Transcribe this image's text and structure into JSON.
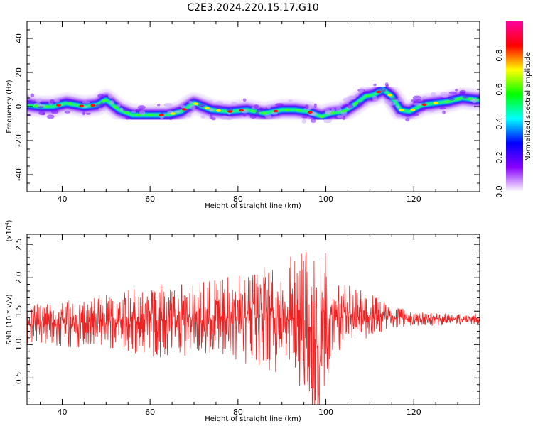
{
  "figure_title": "C2E3.2024.220.15.17.G10",
  "chart_data": [
    {
      "type": "heatmap",
      "xlabel": "Height of straight line (km)",
      "ylabel": "Frequency (Hz)",
      "xlim": [
        32,
        135
      ],
      "ylim": [
        -50,
        50
      ],
      "xticks": [
        40,
        60,
        80,
        100,
        120
      ],
      "yticks": [
        -40,
        -20,
        0,
        20,
        40
      ],
      "ridge": {
        "x": [
          32,
          35,
          38,
          41,
          45,
          48,
          50,
          53,
          56,
          60,
          64,
          67,
          70,
          74,
          78,
          82,
          86,
          90,
          93,
          96,
          99,
          101,
          104,
          107,
          109,
          111,
          113,
          115,
          117,
          119,
          122,
          125,
          128,
          131,
          134
        ],
        "y": [
          1,
          0,
          0,
          2,
          0,
          1,
          4,
          -2,
          -5,
          -5,
          -5,
          -3,
          2,
          -2,
          -3,
          -2,
          -4,
          -2,
          -2,
          -3,
          -6,
          -4,
          -3,
          2,
          6,
          7,
          10,
          6,
          -2,
          -3,
          1,
          2,
          3,
          5,
          4
        ]
      },
      "colorbar": {
        "label": "Normalized spectral amplitude",
        "range": [
          0,
          1
        ],
        "ticks": [
          "0.0",
          "0.2",
          "0.4",
          "0.6",
          "0.8"
        ],
        "colors": [
          "#ffffff",
          "#8a00ff",
          "#0000ff",
          "#00ffff",
          "#00ff00",
          "#ffff00",
          "#ff0000",
          "#ff00a0"
        ]
      }
    },
    {
      "type": "line",
      "xlabel": "Height of straight line (km)",
      "ylabel": "SNR (10 * v/v)",
      "multiplier": "(x10",
      "multiplier_exp": "4",
      "xlim": [
        32,
        135
      ],
      "ylim": [
        0.1,
        2.65
      ],
      "xticks": [
        40,
        60,
        80,
        100,
        120
      ],
      "yticks": [
        "0.5",
        "1.0",
        "1.5",
        "2.0",
        "2.5"
      ],
      "series_color": "#ee2222",
      "envelope": {
        "x": [
          32,
          40,
          50,
          60,
          70,
          80,
          85,
          90,
          93,
          96,
          98,
          100,
          102,
          105,
          110,
          115,
          120,
          125,
          130,
          135
        ],
        "mean": [
          1.3,
          1.3,
          1.35,
          1.35,
          1.38,
          1.4,
          1.4,
          1.4,
          1.35,
          1.3,
          1.05,
          1.45,
          1.35,
          1.48,
          1.45,
          1.42,
          1.38,
          1.38,
          1.38,
          1.38
        ],
        "amplitude": [
          0.3,
          0.35,
          0.4,
          0.55,
          0.55,
          0.65,
          0.75,
          0.85,
          1.0,
          1.15,
          1.3,
          1.0,
          0.55,
          0.45,
          0.35,
          0.18,
          0.1,
          0.1,
          0.08,
          0.08
        ]
      }
    }
  ]
}
